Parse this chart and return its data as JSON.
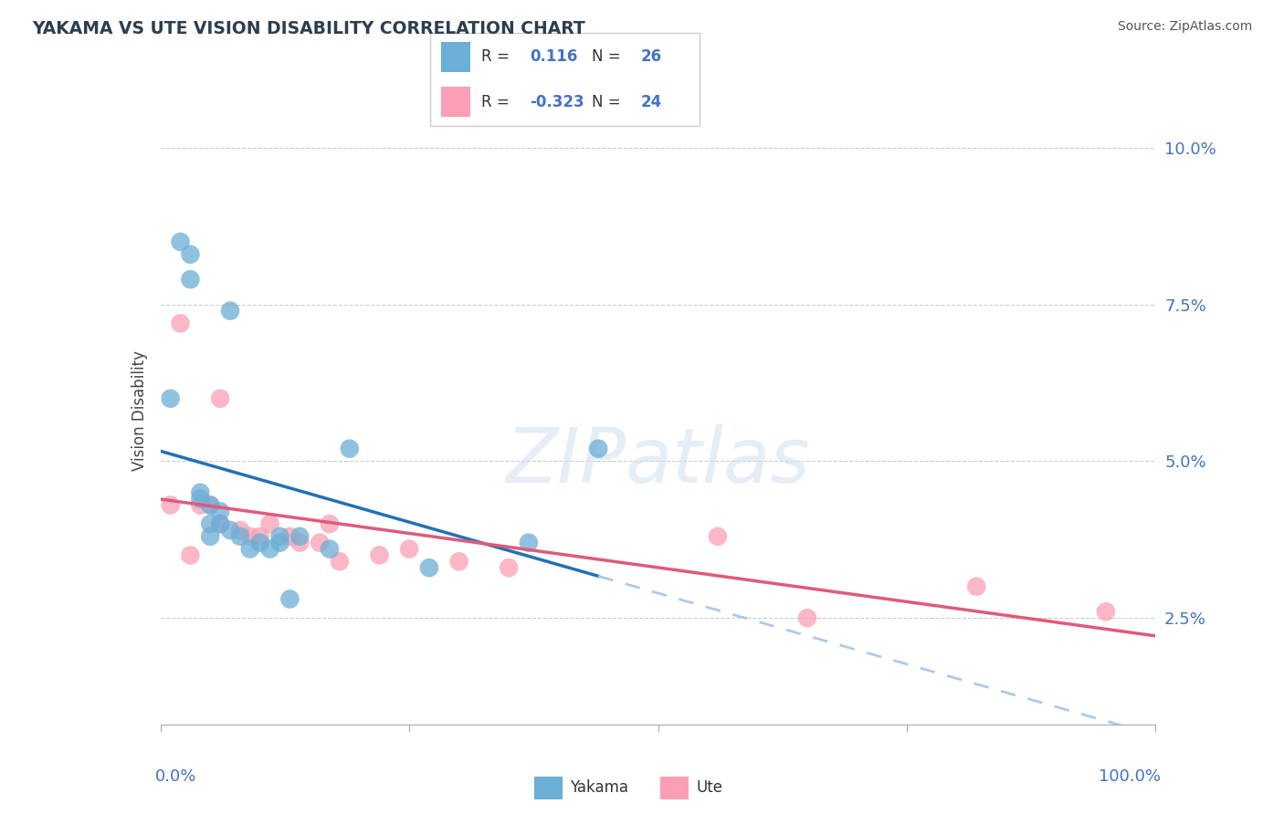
{
  "title": "YAKAMA VS UTE VISION DISABILITY CORRELATION CHART",
  "source": "Source: ZipAtlas.com",
  "ylabel": "Vision Disability",
  "yakama_color": "#6baed6",
  "ute_color": "#fa9fb5",
  "yakama_line_color": "#2171b5",
  "ute_line_color": "#e05a7a",
  "dashed_line_color": "#aec8e8",
  "yakama_R": 0.116,
  "yakama_N": 26,
  "ute_R": -0.323,
  "ute_N": 24,
  "xmin": 0.0,
  "xmax": 1.0,
  "ymin": 0.008,
  "ymax": 0.108,
  "yticks": [
    0.025,
    0.05,
    0.075,
    0.1
  ],
  "ytick_labels": [
    "2.5%",
    "5.0%",
    "7.5%",
    "10.0%"
  ],
  "grid_color": "#cccccc",
  "background_color": "#ffffff",
  "title_color": "#2c3e50",
  "source_color": "#555555",
  "label_color": "#4472c4",
  "yakama_x": [
    0.02,
    0.03,
    0.03,
    0.07,
    0.01,
    0.04,
    0.04,
    0.05,
    0.05,
    0.05,
    0.06,
    0.06,
    0.07,
    0.08,
    0.09,
    0.1,
    0.11,
    0.12,
    0.12,
    0.14,
    0.17,
    0.19,
    0.44,
    0.13,
    0.27,
    0.37
  ],
  "yakama_y": [
    0.085,
    0.083,
    0.079,
    0.074,
    0.06,
    0.045,
    0.044,
    0.043,
    0.04,
    0.038,
    0.042,
    0.04,
    0.039,
    0.038,
    0.036,
    0.037,
    0.036,
    0.038,
    0.037,
    0.038,
    0.036,
    0.052,
    0.052,
    0.028,
    0.033,
    0.037
  ],
  "ute_x": [
    0.02,
    0.06,
    0.01,
    0.04,
    0.05,
    0.06,
    0.08,
    0.09,
    0.1,
    0.11,
    0.13,
    0.14,
    0.16,
    0.17,
    0.18,
    0.03,
    0.22,
    0.25,
    0.3,
    0.35,
    0.56,
    0.65,
    0.82,
    0.95
  ],
  "ute_y": [
    0.072,
    0.06,
    0.043,
    0.043,
    0.043,
    0.04,
    0.039,
    0.038,
    0.038,
    0.04,
    0.038,
    0.037,
    0.037,
    0.04,
    0.034,
    0.035,
    0.035,
    0.036,
    0.034,
    0.033,
    0.038,
    0.025,
    0.03,
    0.026
  ]
}
